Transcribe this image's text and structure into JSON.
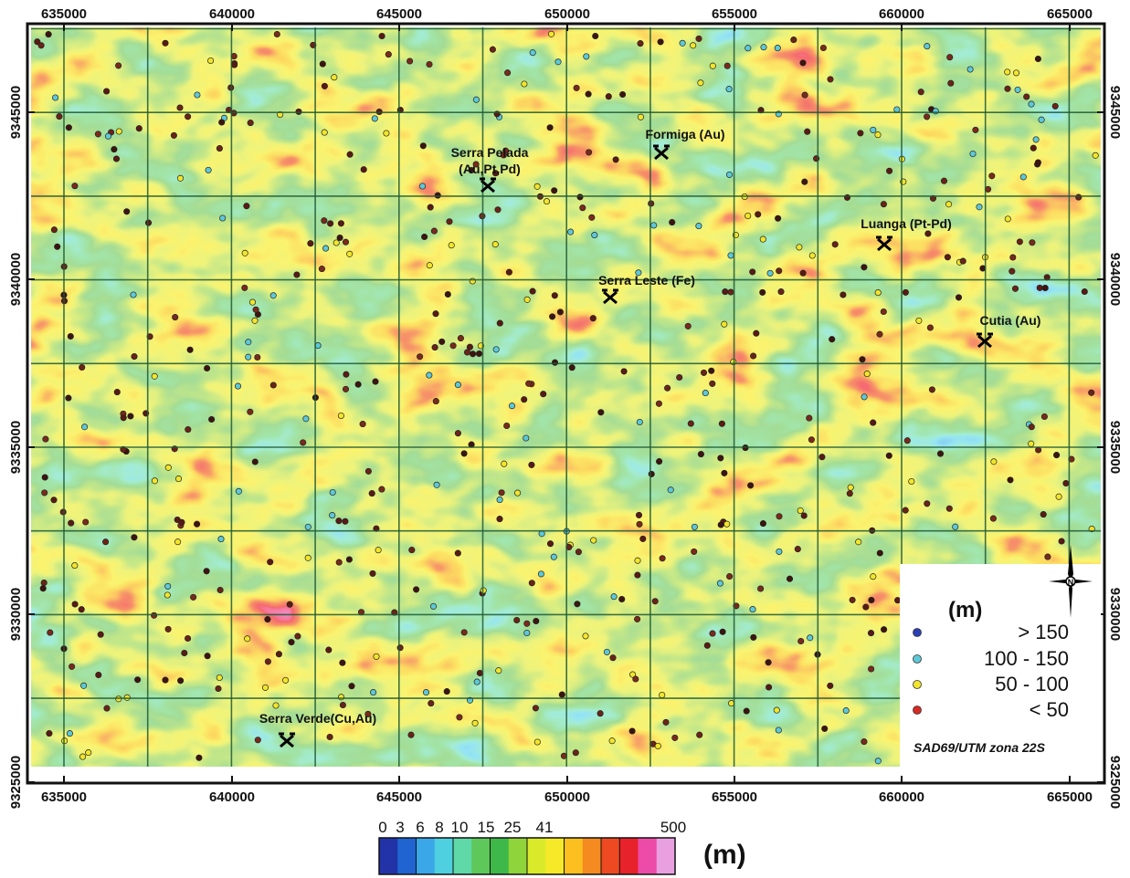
{
  "map": {
    "x_ticks": [
      "635000",
      "640000",
      "645000",
      "650000",
      "655000",
      "660000",
      "665000"
    ],
    "y_ticks": [
      "9345000",
      "9340000",
      "9335000",
      "9330000",
      "9325000"
    ],
    "crs": "SAD69/UTM zona 22S",
    "north_label": "N",
    "sites": [
      {
        "line1": "Serra Pelada",
        "line2": "(Au,Pt,Pd)",
        "symbol": "mine-icon"
      },
      {
        "line1": "Formiga (Au)",
        "line2": "",
        "symbol": "mine-icon"
      },
      {
        "line1": "Luanga (Pt-Pd)",
        "line2": "",
        "symbol": "mine-icon"
      },
      {
        "line1": "Serra Leste (Fe)",
        "line2": "",
        "symbol": "mine-icon"
      },
      {
        "line1": "Cutia (Au)",
        "line2": "",
        "symbol": "mine-icon"
      },
      {
        "line1": "Serra Verde(Cu,Au)",
        "line2": "",
        "symbol": "mine-icon"
      }
    ]
  },
  "legend": {
    "unit": "(m)",
    "items": [
      {
        "label": ">  150",
        "color": "#2b3fb5"
      },
      {
        "label": "100  -  150",
        "color": "#5ec8d8"
      },
      {
        "label": "50  -  100",
        "color": "#f2e52a"
      },
      {
        "label": "<  50",
        "color": "#d82a22"
      }
    ]
  },
  "colorbar": {
    "ticks": [
      "0",
      "3",
      "6",
      "8",
      "10",
      "15",
      "25",
      "41",
      "500"
    ],
    "unit": "(m)",
    "colors": [
      "#2233a8",
      "#1f64d0",
      "#3aa7e8",
      "#4fd0e0",
      "#5fd9a8",
      "#5ec85a",
      "#3fb84a",
      "#8fd43a",
      "#d9ea2a",
      "#f6ea28",
      "#fbc020",
      "#f48a20",
      "#ee4a22",
      "#e8222a",
      "#ec4ca8",
      "#e9a0e0"
    ]
  }
}
